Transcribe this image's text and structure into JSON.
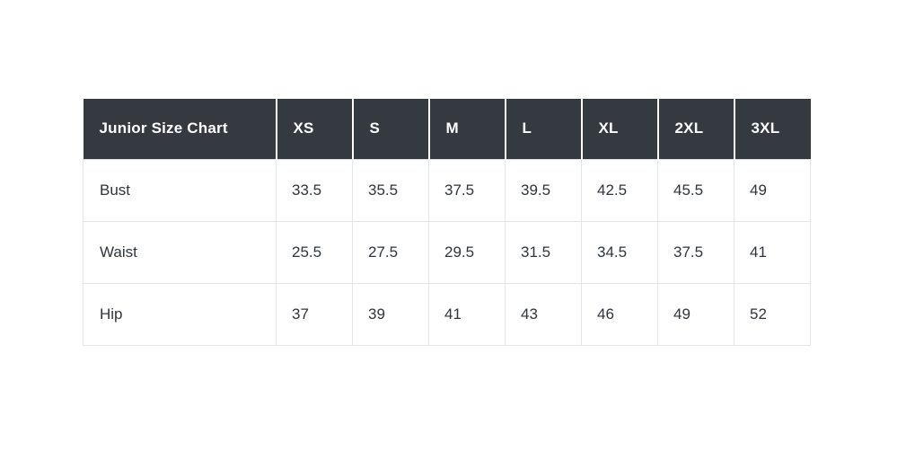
{
  "colors": {
    "header_bg": "#343a40",
    "header_text": "#ffffff",
    "body_text": "#2f353b",
    "border": "#e2e6e9",
    "page_bg": "#ffffff"
  },
  "chart_data": {
    "type": "table",
    "title": "Junior Size Chart",
    "columns": [
      "XS",
      "S",
      "M",
      "L",
      "XL",
      "2XL",
      "3XL"
    ],
    "rows": [
      {
        "label": "Bust",
        "values": [
          "33.5",
          "35.5",
          "37.5",
          "39.5",
          "42.5",
          "45.5",
          "49"
        ]
      },
      {
        "label": "Waist",
        "values": [
          "25.5",
          "27.5",
          "29.5",
          "31.5",
          "34.5",
          "37.5",
          "41"
        ]
      },
      {
        "label": "Hip",
        "values": [
          "37",
          "39",
          "41",
          "43",
          "46",
          "49",
          "52"
        ]
      }
    ]
  }
}
